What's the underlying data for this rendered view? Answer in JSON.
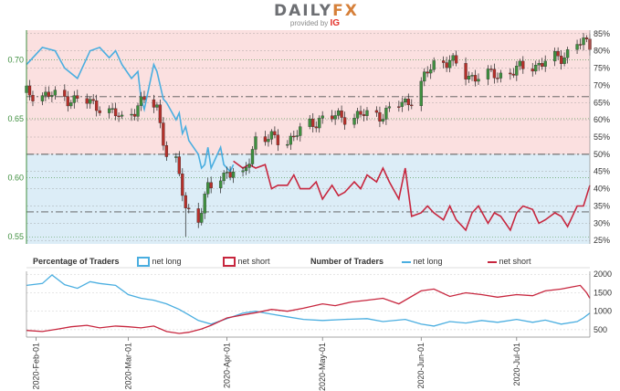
{
  "brand": {
    "name_left": "DAILY",
    "name_right": "FX",
    "provided_by": "provided by",
    "provider": "IG"
  },
  "legend": {
    "pct_title": "Percentage of Traders",
    "pct_long": "net long",
    "pct_short": "net short",
    "num_title": "Number of Traders",
    "num_long": "net long",
    "num_short": "net short"
  },
  "colors": {
    "net_long": "#4aaee0",
    "net_short": "#c7263e",
    "bg_long": "#dcedf7",
    "bg_short": "#fbe0e0",
    "candle_up": "#3f8f3f",
    "candle_down": "#b5302a",
    "axis_left": "#3f8f3f",
    "grid": "#7f7f7f"
  },
  "chart_data": [
    {
      "type": "candlestick",
      "title": "",
      "x_range": [
        "2020-01-29",
        "2020-07-24"
      ],
      "y_left": {
        "ticks": [
          "0.70",
          "0.65",
          "0.60",
          "0.55"
        ],
        "values": [
          0.7,
          0.65,
          0.6,
          0.55
        ],
        "ylim": [
          0.544,
          0.725
        ]
      },
      "y_right": {
        "ticks": [
          "85%",
          "80%",
          "75%",
          "70%",
          "65%",
          "60%",
          "55%",
          "50%",
          "45%",
          "40%",
          "35%",
          "30%",
          "25%"
        ],
        "values": [
          85,
          80,
          75,
          70,
          65,
          60,
          55,
          50,
          45,
          40,
          35,
          30,
          25
        ],
        "ylim": [
          24,
          86
        ]
      },
      "price_anchors": [
        [
          "2020-01-29",
          0.672
        ],
        [
          "2020-02-10",
          0.668
        ],
        [
          "2020-02-20",
          0.662
        ],
        [
          "2020-02-28",
          0.65
        ],
        [
          "2020-03-06",
          0.665
        ],
        [
          "2020-03-10",
          0.66
        ],
        [
          "2020-03-13",
          0.62
        ],
        [
          "2020-03-16",
          0.612
        ],
        [
          "2020-03-19",
          0.575
        ],
        [
          "2020-03-23",
          0.566
        ],
        [
          "2020-03-26",
          0.59
        ],
        [
          "2020-04-01",
          0.606
        ],
        [
          "2020-04-06",
          0.599
        ],
        [
          "2020-04-10",
          0.634
        ],
        [
          "2020-04-20",
          0.632
        ],
        [
          "2020-04-30",
          0.65
        ],
        [
          "2020-05-08",
          0.652
        ],
        [
          "2020-05-20",
          0.654
        ],
        [
          "2020-05-29",
          0.667
        ],
        [
          "2020-06-05",
          0.697
        ],
        [
          "2020-06-10",
          0.7
        ],
        [
          "2020-06-15",
          0.686
        ],
        [
          "2020-06-25",
          0.687
        ],
        [
          "2020-07-06",
          0.695
        ],
        [
          "2020-07-15",
          0.702
        ],
        [
          "2020-07-20",
          0.714
        ],
        [
          "2020-07-24",
          0.713
        ]
      ],
      "low_marker": {
        "date": "2020-03-19",
        "low": 0.55
      },
      "series": [
        {
          "name": "net long",
          "unit": "%",
          "points": [
            [
              "2020-01-29",
              76
            ],
            [
              "2020-02-03",
              81
            ],
            [
              "2020-02-07",
              80
            ],
            [
              "2020-02-10",
              75
            ],
            [
              "2020-02-14",
              72
            ],
            [
              "2020-02-18",
              80
            ],
            [
              "2020-02-21",
              81
            ],
            [
              "2020-02-24",
              78
            ],
            [
              "2020-02-26",
              80
            ],
            [
              "2020-02-28",
              76
            ],
            [
              "2020-03-02",
              72
            ],
            [
              "2020-03-04",
              74
            ],
            [
              "2020-03-05",
              66
            ],
            [
              "2020-03-06",
              63
            ],
            [
              "2020-03-09",
              76
            ],
            [
              "2020-03-10",
              74
            ],
            [
              "2020-03-12",
              66
            ],
            [
              "2020-03-13",
              65
            ],
            [
              "2020-03-16",
              60
            ],
            [
              "2020-03-17",
              62
            ],
            [
              "2020-03-18",
              56
            ],
            [
              "2020-03-19",
              58
            ],
            [
              "2020-03-20",
              54
            ],
            [
              "2020-03-23",
              50
            ],
            [
              "2020-03-24",
              46
            ],
            [
              "2020-03-25",
              47
            ],
            [
              "2020-03-26",
              52
            ],
            [
              "2020-03-27",
              46
            ],
            [
              "2020-03-30",
              52
            ],
            [
              "2020-03-31",
              47
            ],
            [
              "2020-04-02",
              45
            ],
            [
              "2020-04-03",
              47
            ]
          ]
        },
        {
          "name": "net short",
          "unit": "%",
          "points": [
            [
              "2020-04-03",
              48
            ],
            [
              "2020-04-06",
              46
            ],
            [
              "2020-04-08",
              47
            ],
            [
              "2020-04-10",
              46
            ],
            [
              "2020-04-13",
              47
            ],
            [
              "2020-04-15",
              40
            ],
            [
              "2020-04-17",
              41
            ],
            [
              "2020-04-20",
              41
            ],
            [
              "2020-04-22",
              44
            ],
            [
              "2020-04-24",
              40
            ],
            [
              "2020-04-27",
              40
            ],
            [
              "2020-04-29",
              42
            ],
            [
              "2020-05-01",
              37
            ],
            [
              "2020-05-04",
              41
            ],
            [
              "2020-05-06",
              38
            ],
            [
              "2020-05-08",
              39
            ],
            [
              "2020-05-11",
              42
            ],
            [
              "2020-05-13",
              40
            ],
            [
              "2020-05-15",
              44
            ],
            [
              "2020-05-18",
              42
            ],
            [
              "2020-05-20",
              46
            ],
            [
              "2020-05-22",
              42
            ],
            [
              "2020-05-25",
              37
            ],
            [
              "2020-05-27",
              46
            ],
            [
              "2020-05-29",
              32
            ],
            [
              "2020-06-01",
              33
            ],
            [
              "2020-06-03",
              35
            ],
            [
              "2020-06-05",
              33
            ],
            [
              "2020-06-08",
              31
            ],
            [
              "2020-06-10",
              35
            ],
            [
              "2020-06-12",
              31
            ],
            [
              "2020-06-15",
              28
            ],
            [
              "2020-06-17",
              33
            ],
            [
              "2020-06-19",
              35
            ],
            [
              "2020-06-22",
              30
            ],
            [
              "2020-06-24",
              33
            ],
            [
              "2020-06-26",
              32
            ],
            [
              "2020-06-29",
              28
            ],
            [
              "2020-07-01",
              33
            ],
            [
              "2020-07-03",
              35
            ],
            [
              "2020-07-06",
              34
            ],
            [
              "2020-07-08",
              30
            ],
            [
              "2020-07-10",
              31
            ],
            [
              "2020-07-13",
              33
            ],
            [
              "2020-07-15",
              32
            ],
            [
              "2020-07-17",
              29
            ],
            [
              "2020-07-20",
              35
            ],
            [
              "2020-07-22",
              35
            ],
            [
              "2020-07-24",
              41
            ]
          ]
        }
      ]
    },
    {
      "type": "line",
      "title": "",
      "x_ticks": [
        "2020-Feb-01",
        "2020-Mar-01",
        "2020-Apr-01",
        "2020-May-01",
        "2020-Jun-01",
        "2020-Jul-01"
      ],
      "x_tick_dates": [
        "2020-02-01",
        "2020-03-01",
        "2020-04-01",
        "2020-05-01",
        "2020-06-01",
        "2020-07-01"
      ],
      "y_right": {
        "ticks": [
          "2000",
          "1500",
          "1000",
          "500"
        ],
        "values": [
          2000,
          1500,
          1000,
          500
        ],
        "ylim": [
          300,
          2080
        ]
      },
      "series": [
        {
          "name": "net long",
          "points": [
            [
              "2020-01-29",
              1700
            ],
            [
              "2020-02-03",
              1750
            ],
            [
              "2020-02-06",
              1980
            ],
            [
              "2020-02-10",
              1720
            ],
            [
              "2020-02-14",
              1620
            ],
            [
              "2020-02-18",
              1800
            ],
            [
              "2020-02-21",
              1750
            ],
            [
              "2020-02-26",
              1700
            ],
            [
              "2020-03-01",
              1450
            ],
            [
              "2020-03-05",
              1350
            ],
            [
              "2020-03-09",
              1300
            ],
            [
              "2020-03-13",
              1200
            ],
            [
              "2020-03-17",
              1050
            ],
            [
              "2020-03-20",
              900
            ],
            [
              "2020-03-23",
              750
            ],
            [
              "2020-03-27",
              650
            ],
            [
              "2020-04-01",
              800
            ],
            [
              "2020-04-06",
              950
            ],
            [
              "2020-04-10",
              1000
            ],
            [
              "2020-04-15",
              920
            ],
            [
              "2020-04-20",
              850
            ],
            [
              "2020-04-25",
              780
            ],
            [
              "2020-05-01",
              750
            ],
            [
              "2020-05-08",
              780
            ],
            [
              "2020-05-15",
              800
            ],
            [
              "2020-05-20",
              720
            ],
            [
              "2020-05-27",
              780
            ],
            [
              "2020-06-01",
              650
            ],
            [
              "2020-06-05",
              600
            ],
            [
              "2020-06-10",
              720
            ],
            [
              "2020-06-15",
              680
            ],
            [
              "2020-06-20",
              750
            ],
            [
              "2020-06-25",
              700
            ],
            [
              "2020-07-01",
              780
            ],
            [
              "2020-07-06",
              700
            ],
            [
              "2020-07-10",
              760
            ],
            [
              "2020-07-15",
              650
            ],
            [
              "2020-07-20",
              720
            ],
            [
              "2020-07-22",
              820
            ],
            [
              "2020-07-24",
              950
            ]
          ]
        },
        {
          "name": "net short",
          "points": [
            [
              "2020-01-29",
              480
            ],
            [
              "2020-02-03",
              450
            ],
            [
              "2020-02-08",
              520
            ],
            [
              "2020-02-12",
              580
            ],
            [
              "2020-02-17",
              620
            ],
            [
              "2020-02-21",
              550
            ],
            [
              "2020-02-26",
              600
            ],
            [
              "2020-03-01",
              580
            ],
            [
              "2020-03-05",
              550
            ],
            [
              "2020-03-09",
              600
            ],
            [
              "2020-03-13",
              450
            ],
            [
              "2020-03-17",
              400
            ],
            [
              "2020-03-20",
              430
            ],
            [
              "2020-03-24",
              520
            ],
            [
              "2020-03-27",
              620
            ],
            [
              "2020-04-01",
              820
            ],
            [
              "2020-04-06",
              900
            ],
            [
              "2020-04-10",
              960
            ],
            [
              "2020-04-15",
              1050
            ],
            [
              "2020-04-20",
              1000
            ],
            [
              "2020-04-25",
              1080
            ],
            [
              "2020-05-01",
              1200
            ],
            [
              "2020-05-05",
              1150
            ],
            [
              "2020-05-10",
              1250
            ],
            [
              "2020-05-15",
              1300
            ],
            [
              "2020-05-20",
              1350
            ],
            [
              "2020-05-25",
              1200
            ],
            [
              "2020-06-01",
              1550
            ],
            [
              "2020-06-05",
              1600
            ],
            [
              "2020-06-10",
              1400
            ],
            [
              "2020-06-15",
              1500
            ],
            [
              "2020-06-20",
              1450
            ],
            [
              "2020-06-25",
              1380
            ],
            [
              "2020-07-01",
              1450
            ],
            [
              "2020-07-06",
              1420
            ],
            [
              "2020-07-10",
              1550
            ],
            [
              "2020-07-15",
              1600
            ],
            [
              "2020-07-18",
              1650
            ],
            [
              "2020-07-21",
              1700
            ],
            [
              "2020-07-23",
              1500
            ],
            [
              "2020-07-24",
              1350
            ]
          ]
        }
      ]
    }
  ]
}
